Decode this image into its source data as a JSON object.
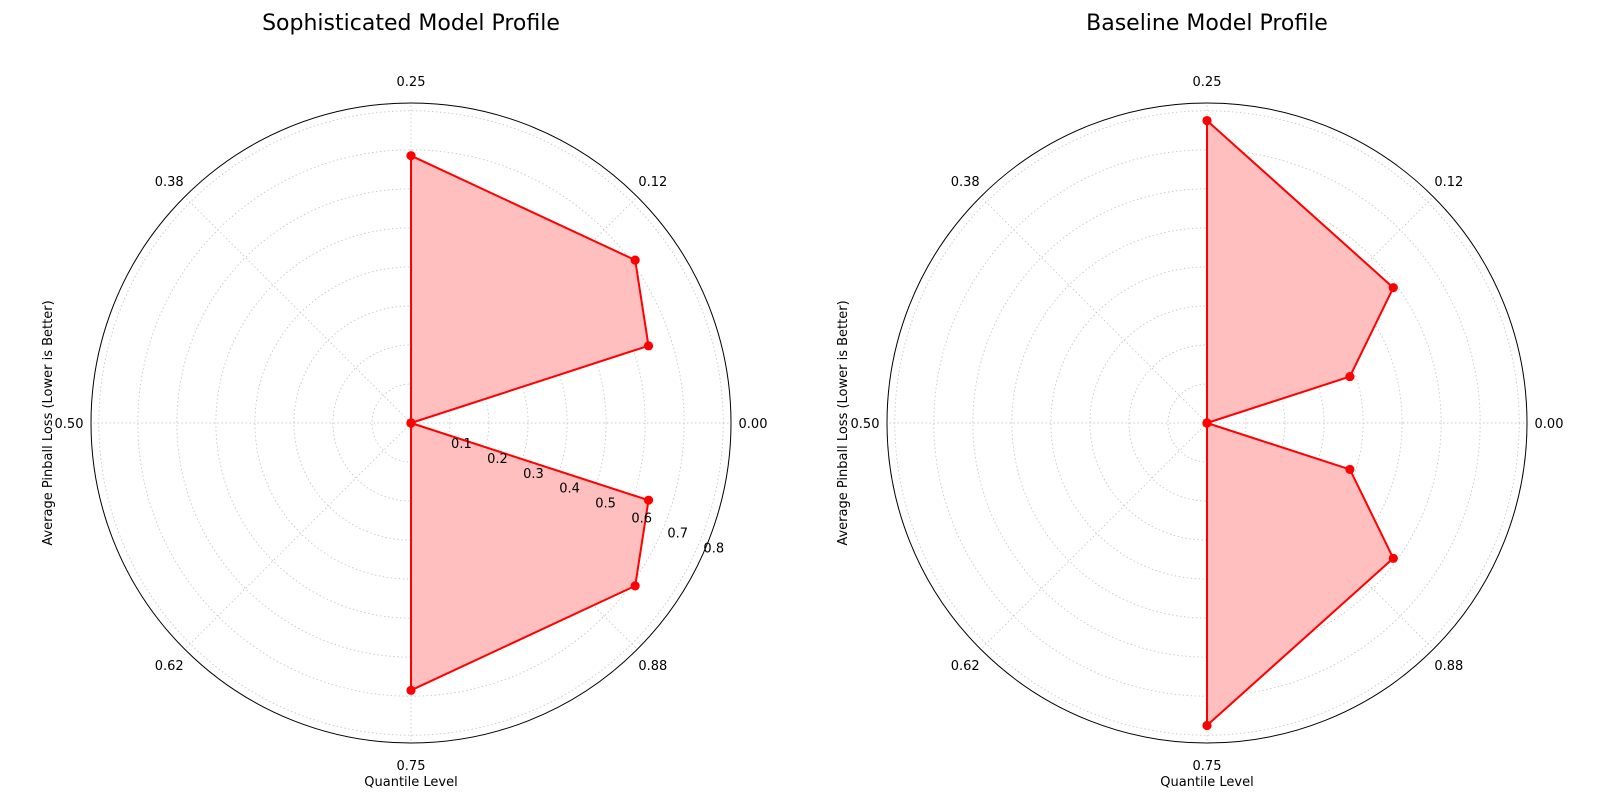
{
  "chart_data": [
    {
      "type": "radar",
      "title": "Sophisticated Model Profile",
      "xlabel": "Quantile Level",
      "ylabel": "Average Pinball Loss (Lower is Better)",
      "angular_tick_labels": [
        "0.00",
        "0.12",
        "0.25",
        "0.38",
        "0.50",
        "0.62",
        "0.75",
        "0.88"
      ],
      "radial_tick_labels": [
        "0.1",
        "0.2",
        "0.3",
        "0.4",
        "0.5",
        "0.6",
        "0.7",
        "0.8"
      ],
      "radial_ticks": [
        0.1,
        0.2,
        0.3,
        0.4,
        0.5,
        0.6,
        0.7,
        0.8
      ],
      "rlim": [
        0,
        0.82
      ],
      "points": [
        {
          "quantile": 0.0,
          "loss": 0.0
        },
        {
          "quantile": 0.05,
          "loss": 0.64
        },
        {
          "quantile": 0.1,
          "loss": 0.71
        },
        {
          "quantile": 0.25,
          "loss": 0.685
        },
        {
          "quantile": 0.75,
          "loss": 0.685
        },
        {
          "quantile": 0.9,
          "loss": 0.71
        },
        {
          "quantile": 0.95,
          "loss": 0.64
        },
        {
          "quantile": 1.0,
          "loss": 0.0
        }
      ],
      "color": "#ff0000",
      "fill_color": "#ffbfbf",
      "grid": true
    },
    {
      "type": "radar",
      "title": "Baseline Model Profile",
      "xlabel": "Quantile Level",
      "ylabel": "Average Pinball Loss (Lower is Better)",
      "angular_tick_labels": [
        "0.00",
        "0.12",
        "0.25",
        "0.38",
        "0.50",
        "0.62",
        "0.75",
        "0.88"
      ],
      "radial_tick_labels": [],
      "radial_ticks": [
        0.1,
        0.2,
        0.3,
        0.4,
        0.5,
        0.6,
        0.7,
        0.8
      ],
      "rlim": [
        0,
        0.82
      ],
      "points": [
        {
          "quantile": 0.0,
          "loss": 0.0
        },
        {
          "quantile": 0.05,
          "loss": 0.385
        },
        {
          "quantile": 0.1,
          "loss": 0.59
        },
        {
          "quantile": 0.25,
          "loss": 0.775
        },
        {
          "quantile": 0.75,
          "loss": 0.775
        },
        {
          "quantile": 0.9,
          "loss": 0.59
        },
        {
          "quantile": 0.95,
          "loss": 0.385
        },
        {
          "quantile": 1.0,
          "loss": 0.0
        }
      ],
      "color": "#ff0000",
      "fill_color": "#ffbfbf",
      "grid": true
    }
  ]
}
